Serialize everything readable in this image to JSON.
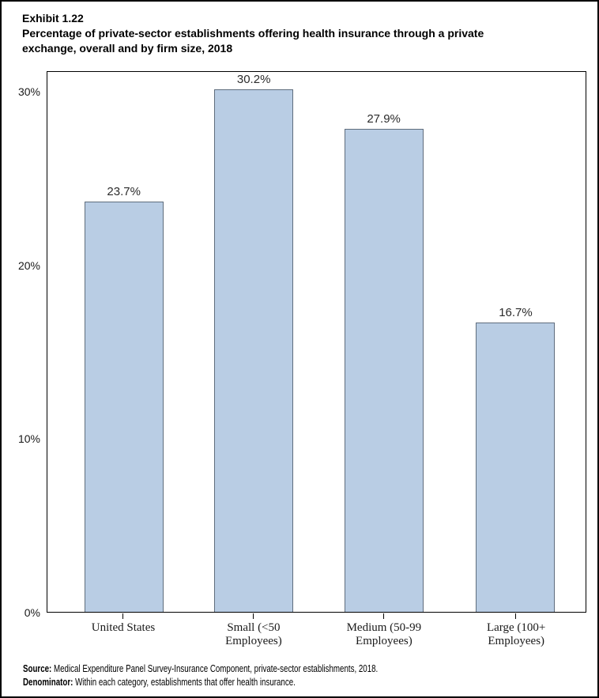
{
  "header": {
    "exhibit_label": "Exhibit 1.22",
    "title_line1": "Percentage of private-sector establishments offering health insurance through a private",
    "title_line2": "exchange, overall and by firm size, 2018"
  },
  "chart_data": {
    "type": "bar",
    "title": "Percentage of private-sector establishments offering health insurance through a private exchange, overall and by firm size, 2018",
    "categories": [
      "United States",
      "Small (<50 Employees)",
      "Medium (50-99 Employees)",
      "Large (100+ Employees)"
    ],
    "category_lines": [
      {
        "line1": "United States",
        "line2": ""
      },
      {
        "line1": "Small (<50",
        "line2": "Employees)"
      },
      {
        "line1": "Medium (50-99",
        "line2": "Employees)"
      },
      {
        "line1": "Large (100+",
        "line2": "Employees)"
      }
    ],
    "values": [
      23.7,
      30.2,
      27.9,
      16.7
    ],
    "data_labels": [
      "23.7%",
      "30.2%",
      "27.9%",
      "16.7%"
    ],
    "xlabel": "",
    "ylabel": "",
    "ylim": [
      0,
      31.2
    ],
    "yticks": [
      {
        "value": 0,
        "label": "0%"
      },
      {
        "value": 10,
        "label": "10%"
      },
      {
        "value": 20,
        "label": "20%"
      },
      {
        "value": 30,
        "label": "30%"
      }
    ],
    "grid": false,
    "legend": false,
    "bar_fill_color": "#b9cde4",
    "bar_border_color": "#5f6d7d"
  },
  "footer": {
    "source_label": "Source:",
    "source_text": " Medical Expenditure Panel Survey-Insurance Component, private-sector establishments, 2018.",
    "denominator_label": "Denominator:",
    "denominator_text": " Within each category, establishments that offer health insurance."
  }
}
